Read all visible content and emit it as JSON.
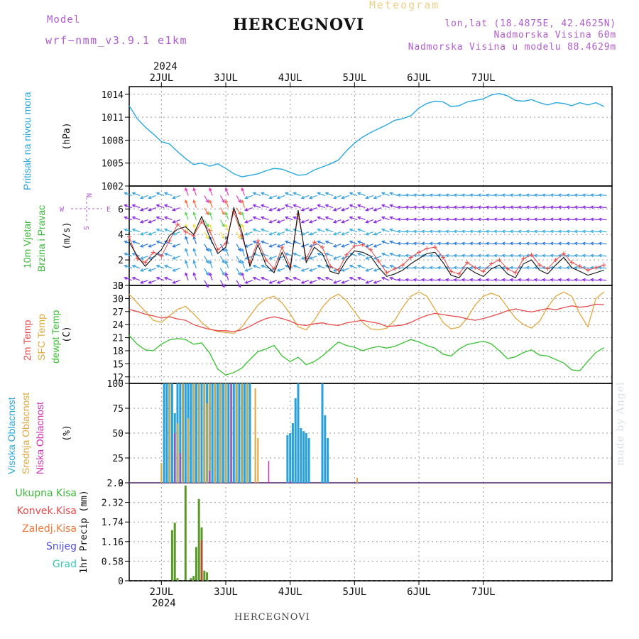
{
  "header": {
    "model_label": "Model",
    "model_name": "wrf−nmm_v3.9.1  e1km",
    "station": "HERCEGNOVI",
    "meteogram": "Meteogram",
    "lonlat": "lon,lat (18.4875E, 42.4625N)",
    "altitude": "Nadmorska Visina 60m",
    "model_altitude": "Nadmorska Visina u modelu 88.4629m"
  },
  "footer": {
    "station": "HERCEGNOVI",
    "credit": "made by Angel"
  },
  "colors": {
    "pressure": "#29a8e0",
    "wind_speed": "#111111",
    "temp": "#e84a4a",
    "sfc_temp": "#e0a840",
    "dewpt": "#38c030",
    "cloud_high": "#29a0d8",
    "cloud_mid": "#d8a840",
    "cloud_low": "#d030b0",
    "rain_total": "#38b038",
    "rain_conv": "#e84a4a",
    "rain_frozen": "#f07838",
    "snow": "#5050e0",
    "hail": "#38c8b8",
    "axis_label_purple": "#b05ccf"
  },
  "chart_data": [
    {
      "type": "line",
      "panel": "pressure",
      "ylabel": "(hPa)",
      "side_label": "Pritisak na nivou mora",
      "ylim": [
        1002,
        1015
      ],
      "yticks": [
        1002,
        1005,
        1008,
        1011,
        1014
      ],
      "x_hours": [
        0,
        3,
        6,
        9,
        12,
        15,
        18,
        21,
        24,
        27,
        30,
        33,
        36,
        39,
        42,
        45,
        48,
        51,
        54,
        57,
        60,
        63,
        66,
        69,
        72,
        75,
        78,
        81,
        84,
        87,
        90,
        93,
        96,
        99,
        102,
        105,
        108,
        111,
        114,
        117,
        120,
        123,
        126,
        129,
        132,
        135,
        138,
        141,
        144,
        147,
        150,
        153,
        156,
        159,
        162,
        165,
        168,
        171,
        174,
        177
      ],
      "series": [
        {
          "values": [
            1012.5,
            1010.8,
            1009.7,
            1008.8,
            1007.8,
            1007.5,
            1006.5,
            1005.6,
            1004.8,
            1005.0,
            1004.6,
            1004.9,
            1004.3,
            1003.6,
            1003.2,
            1003.4,
            1003.6,
            1004.0,
            1004.3,
            1004.2,
            1003.8,
            1003.4,
            1003.5,
            1004.1,
            1004.5,
            1004.9,
            1005.4,
            1006.6,
            1007.6,
            1008.4,
            1009.0,
            1009.5,
            1010.0,
            1010.6,
            1010.8,
            1011.2,
            1012.2,
            1012.8,
            1013.1,
            1013.0,
            1012.4,
            1012.5,
            1013.0,
            1013.2,
            1013.4,
            1013.9,
            1014.1,
            1013.8,
            1013.2,
            1013.1,
            1013.3,
            1012.9,
            1012.6,
            1012.9,
            1012.8,
            1012.5,
            1012.9,
            1012.6,
            1012.9,
            1012.4
          ]
        }
      ]
    },
    {
      "type": "line",
      "panel": "wind",
      "ylabel": "(m/s)",
      "side_label_1": "10m Vjetar",
      "side_label_2": "Brzina i Pravac",
      "compass": {
        "n": "N",
        "s": "S",
        "e": "E",
        "w": "W"
      },
      "ylim": [
        0,
        7.8
      ],
      "yticks": [
        0,
        2,
        4,
        6
      ],
      "x_hours": [
        0,
        3,
        6,
        9,
        12,
        15,
        18,
        21,
        24,
        27,
        30,
        33,
        36,
        39,
        42,
        45,
        48,
        51,
        54,
        57,
        60,
        63,
        66,
        69,
        72,
        75,
        78,
        81,
        84,
        87,
        90,
        93,
        96,
        99,
        102,
        105,
        108,
        111,
        114,
        117,
        120,
        123,
        126,
        129,
        132,
        135,
        138,
        141,
        144,
        147,
        150,
        153,
        156,
        159,
        162,
        165,
        168,
        171,
        174,
        177
      ],
      "series": [
        {
          "values": [
            3.8,
            2.1,
            1.8,
            2.6,
            2.3,
            3.5,
            4.8,
            4.2,
            3.9,
            5.0,
            4.3,
            2.8,
            3.3,
            5.8,
            3.9,
            1.8,
            3.5,
            2.0,
            1.3,
            3.0,
            1.5,
            5.6,
            2.1,
            3.4,
            3.0,
            1.5,
            1.2,
            2.4,
            3.1,
            3.2,
            2.8,
            1.9,
            1.0,
            1.3,
            1.6,
            2.2,
            2.6,
            2.9,
            3.0,
            2.2,
            1.1,
            0.9,
            1.8,
            1.4,
            1.1,
            1.7,
            2.0,
            1.3,
            1.0,
            2.1,
            2.4,
            1.6,
            1.3,
            2.0,
            2.5,
            1.8,
            1.5,
            1.2,
            1.4,
            1.6
          ]
        },
        {
          "values": [
            3.4,
            2.3,
            1.5,
            2.2,
            2.8,
            3.9,
            4.4,
            4.6,
            4.0,
            5.4,
            3.8,
            2.5,
            3.0,
            6.1,
            4.2,
            1.5,
            3.2,
            1.6,
            1.0,
            2.6,
            1.2,
            5.9,
            1.8,
            3.0,
            2.5,
            1.1,
            0.9,
            2.0,
            2.7,
            2.6,
            2.3,
            1.4,
            0.7,
            0.9,
            1.2,
            1.7,
            2.1,
            2.5,
            2.6,
            1.8,
            0.8,
            0.6,
            1.4,
            1.0,
            0.7,
            1.3,
            1.6,
            0.9,
            0.6,
            1.7,
            2.0,
            1.2,
            0.9,
            1.6,
            2.2,
            1.4,
            1.1,
            0.8,
            1.0,
            1.2
          ]
        }
      ]
    },
    {
      "type": "line",
      "panel": "temperature",
      "ylabel": "(C)",
      "side_label_1": "2m Temp",
      "side_label_2": "SFC Temp",
      "side_label_3": "dewpt Temp",
      "ylim": [
        10.5,
        33
      ],
      "yticks": [
        12,
        15,
        18,
        21,
        24,
        27,
        30,
        33
      ],
      "x_hours": [
        0,
        3,
        6,
        9,
        12,
        15,
        18,
        21,
        24,
        27,
        30,
        33,
        36,
        39,
        42,
        45,
        48,
        51,
        54,
        57,
        60,
        63,
        66,
        69,
        72,
        75,
        78,
        81,
        84,
        87,
        90,
        93,
        96,
        99,
        102,
        105,
        108,
        111,
        114,
        117,
        120,
        123,
        126,
        129,
        132,
        135,
        138,
        141,
        144,
        147,
        150,
        153,
        156,
        159,
        162,
        165,
        168,
        171,
        174,
        177
      ],
      "series": [
        {
          "values": [
            27.5,
            27.0,
            26.4,
            26.0,
            25.5,
            25.8,
            25.3,
            25.0,
            24.0,
            23.4,
            22.9,
            22.6,
            22.6,
            22.4,
            22.8,
            23.6,
            24.6,
            25.4,
            25.8,
            25.4,
            24.8,
            24.0,
            23.8,
            24.2,
            24.4,
            24.0,
            23.8,
            24.4,
            24.7,
            25.0,
            24.6,
            24.3,
            23.6,
            23.7,
            23.9,
            24.5,
            25.4,
            26.1,
            26.6,
            26.3,
            26.0,
            25.8,
            25.3,
            25.0,
            25.4,
            25.9,
            26.5,
            27.2,
            27.6,
            27.2,
            26.9,
            27.3,
            27.7,
            27.4,
            27.9,
            28.3,
            28.0,
            28.2,
            28.7,
            28.6
          ]
        },
        {
          "values": [
            31.0,
            29.0,
            27.0,
            25.0,
            24.5,
            26.0,
            27.5,
            28.2,
            26.5,
            24.5,
            23.0,
            22.4,
            22.2,
            22.0,
            23.5,
            26.0,
            28.5,
            30.0,
            30.5,
            29.0,
            26.5,
            23.5,
            22.8,
            25.0,
            28.0,
            30.0,
            31.0,
            29.5,
            27.0,
            24.5,
            23.0,
            22.8,
            23.2,
            25.0,
            28.0,
            30.5,
            31.5,
            30.5,
            27.5,
            24.5,
            23.0,
            23.4,
            25.5,
            28.5,
            30.5,
            31.2,
            30.5,
            28.0,
            25.5,
            24.0,
            23.2,
            24.8,
            28.0,
            30.5,
            31.5,
            30.5,
            26.5,
            23.5,
            30.0,
            31.5
          ]
        },
        {
          "values": [
            21.5,
            19.5,
            18.2,
            18.0,
            19.5,
            20.5,
            20.8,
            20.6,
            19.5,
            19.8,
            17.5,
            13.8,
            12.4,
            13.0,
            14.0,
            16.0,
            17.8,
            18.4,
            19.2,
            16.8,
            15.5,
            16.5,
            14.8,
            15.5,
            16.8,
            18.4,
            20.0,
            19.2,
            18.8,
            18.0,
            18.6,
            19.0,
            18.6,
            19.0,
            19.8,
            20.6,
            20.0,
            19.2,
            18.6,
            17.2,
            16.8,
            18.4,
            19.4,
            19.8,
            20.2,
            19.6,
            18.0,
            16.2,
            16.6,
            17.6,
            18.2,
            17.0,
            16.8,
            16.0,
            15.2,
            13.6,
            13.4,
            15.6,
            17.6,
            18.7
          ]
        }
      ]
    },
    {
      "type": "bar",
      "panel": "clouds",
      "ylabel": "(%)",
      "side_label_1": "Visoka Oblacnost",
      "side_label_2": "Srednja Oblacnost",
      "side_label_3": "Niska Oblacnost",
      "ylim": [
        0,
        100
      ],
      "yticks": [
        0,
        25,
        50,
        75,
        100
      ],
      "series": [
        {
          "name": "high",
          "x_hours": [
            13,
            14,
            15,
            16,
            17,
            18,
            19,
            20,
            21,
            22,
            23,
            24,
            25,
            26,
            27,
            28,
            29,
            30,
            31,
            32,
            33,
            34,
            35,
            36,
            37,
            38,
            39,
            40,
            41,
            42,
            43,
            44,
            45,
            56,
            57,
            58,
            59,
            60,
            61,
            62,
            63,
            64,
            65,
            66,
            67,
            68,
            69,
            72,
            73,
            74,
            75
          ],
          "values": [
            100,
            100,
            100,
            100,
            70,
            100,
            100,
            100,
            100,
            100,
            100,
            100,
            100,
            100,
            100,
            100,
            100,
            100,
            100,
            100,
            100,
            100,
            100,
            100,
            100,
            100,
            100,
            100,
            100,
            100,
            100,
            100,
            100,
            0,
            0,
            0,
            48,
            50,
            60,
            85,
            100,
            55,
            52,
            50,
            45,
            0,
            0,
            100,
            68,
            45,
            0
          ]
        },
        {
          "name": "mid",
          "x_hours": [
            12,
            15,
            18,
            20,
            22,
            24,
            26,
            28,
            29,
            30,
            32,
            34,
            36,
            38,
            40,
            42,
            44,
            47,
            48,
            85
          ],
          "values": [
            20,
            100,
            60,
            100,
            65,
            100,
            100,
            100,
            80,
            100,
            100,
            100,
            100,
            100,
            100,
            100,
            100,
            95,
            45,
            5
          ]
        },
        {
          "name": "low",
          "x_hours": [
            17,
            19,
            30,
            38,
            52,
            60
          ],
          "values": [
            50,
            30,
            12,
            100,
            22,
            2
          ]
        }
      ]
    },
    {
      "type": "bar",
      "panel": "precipitation",
      "ylabel": "1hr Precip (mm)",
      "legend": [
        "Ukupna Kisa",
        "Konvek.Kisa",
        "Zaledj.Kisa",
        "Snijeg",
        "Grad"
      ],
      "ylim": [
        0,
        2.9
      ],
      "yticks": [
        0,
        0.58,
        1.16,
        1.74,
        2.32,
        2.9
      ],
      "x_hours": [
        16,
        17,
        18,
        21,
        23,
        24,
        25,
        26,
        27,
        28,
        29
      ],
      "series": [
        {
          "name": "Ukupna Kisa",
          "values": [
            1.5,
            1.72,
            0.08,
            2.82,
            0.08,
            0.14,
            1.0,
            2.42,
            1.58,
            0.3,
            0.25
          ]
        },
        {
          "name": "Konvek.Kisa",
          "values": [
            0.0,
            0.0,
            0.0,
            0.0,
            0.0,
            0.0,
            0.0,
            0.0,
            1.2,
            0.0,
            0.0
          ]
        }
      ]
    }
  ],
  "time_axis": {
    "year": "2024",
    "days": [
      "2JUL",
      "3JUL",
      "4JUL",
      "5JUL",
      "6JUL",
      "7JUL"
    ],
    "day_hours": [
      12,
      36,
      60,
      84,
      108,
      132
    ]
  }
}
